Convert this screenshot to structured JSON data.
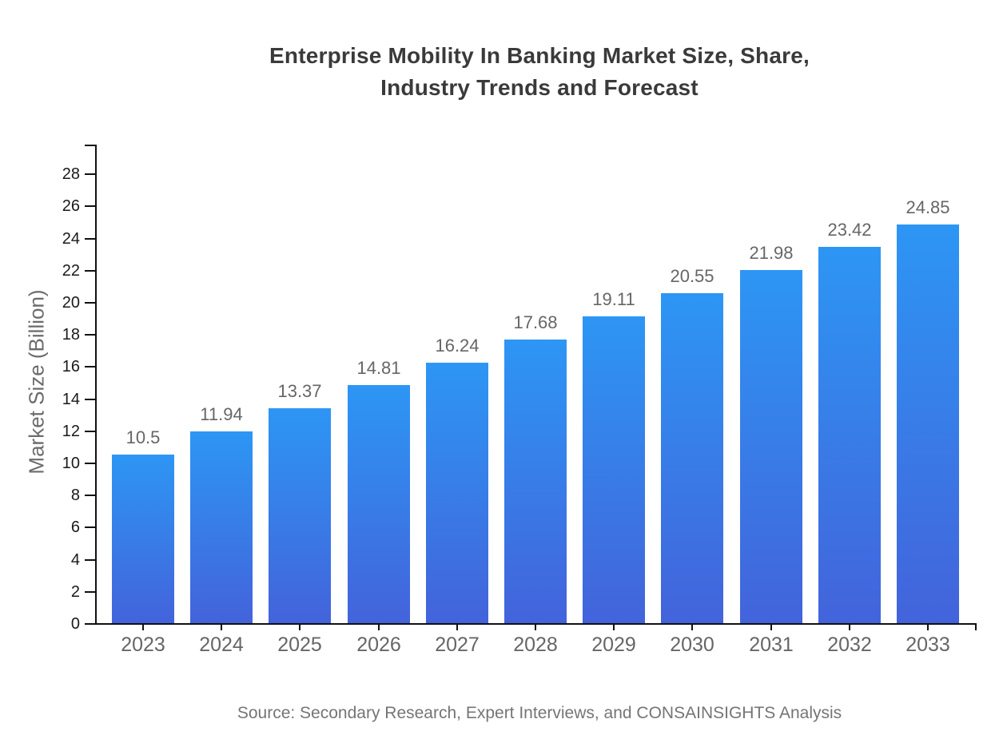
{
  "title": {
    "line1": "Enterprise Mobility In Banking Market Size, Share,",
    "line2": "Industry Trends and Forecast"
  },
  "source_note": "Source: Secondary Research, Expert Interviews, and CONSAINSIGHTS Analysis",
  "colors": {
    "bar_gradient_top": "#2d96f5",
    "bar_gradient_bottom": "#4363db",
    "axis": "#111111",
    "title_text": "#3a3a3a",
    "value_label_text": "#666666",
    "year_label_text": "#666666",
    "y_tick_label_text": "#1a1a1a",
    "y_axis_title_text": "#6b6b6b",
    "source_text": "#757575",
    "background": "#ffffff"
  },
  "chart_data": {
    "type": "bar",
    "title": "Enterprise Mobility In Banking Market Size, Share, Industry Trends and Forecast",
    "categories": [
      "2023",
      "2024",
      "2025",
      "2026",
      "2027",
      "2028",
      "2029",
      "2030",
      "2031",
      "2032",
      "2033"
    ],
    "values": [
      10.5,
      11.94,
      13.37,
      14.81,
      16.24,
      17.68,
      19.11,
      20.55,
      21.98,
      23.42,
      24.85
    ],
    "value_labels": [
      "10.5",
      "11.94",
      "13.37",
      "14.81",
      "16.24",
      "17.68",
      "19.11",
      "20.55",
      "21.98",
      "23.42",
      "24.85"
    ],
    "xlabel": "",
    "ylabel": "Market Size (Billion)",
    "ylim": [
      0,
      29.8
    ],
    "yticks": [
      0,
      2,
      4,
      6,
      8,
      10,
      12,
      14,
      16,
      18,
      20,
      22,
      24,
      26,
      28
    ],
    "grid": false,
    "legend_position": "none",
    "bar_color_gradient": [
      "#2d96f5",
      "#4363db"
    ]
  }
}
